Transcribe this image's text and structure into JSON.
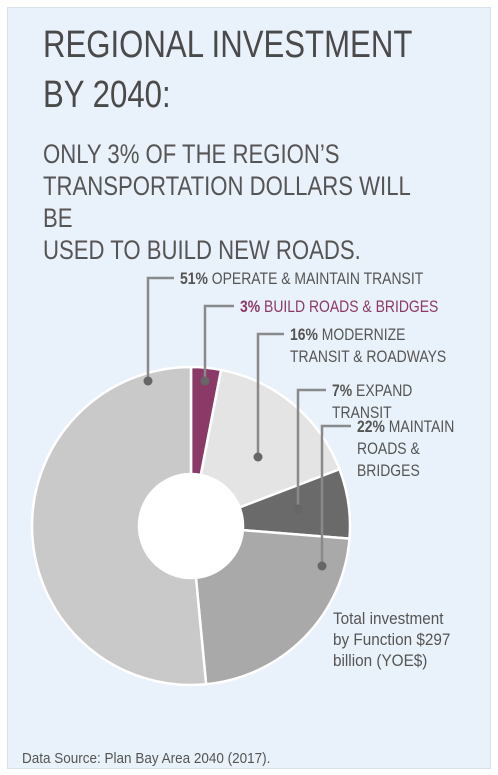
{
  "chart_data": {
    "type": "donut",
    "title": "REGIONAL INVESTMENT\nBY 2040:",
    "subtitle": "ONLY 3% OF THE REGION’S\nTRANSPORTATION DOLLARS WILL BE\nUSED TO BUILD NEW ROADS.",
    "categories": [
      "BUILD ROADS & BRIDGES",
      "MODERNIZE\nTRANSIT & ROADWAYS",
      "EXPAND TRANSIT",
      "MAINTAIN\nROADS & BRIDGES",
      "OPERATE & MAINTAIN TRANSIT"
    ],
    "values": [
      3,
      16,
      7,
      22,
      51
    ],
    "value_labels": [
      "3%",
      "16%",
      "7%",
      "22%",
      "51%"
    ],
    "colors": [
      "#8b3a68",
      "#e4e4e4",
      "#6a6a6a",
      "#a9a9a9",
      "#c9c9c9"
    ],
    "annotation": "Total investment\nby Function $297\nbillion (YOE$)",
    "source": "Data Source: Plan Bay Area 2040 (2017)."
  }
}
